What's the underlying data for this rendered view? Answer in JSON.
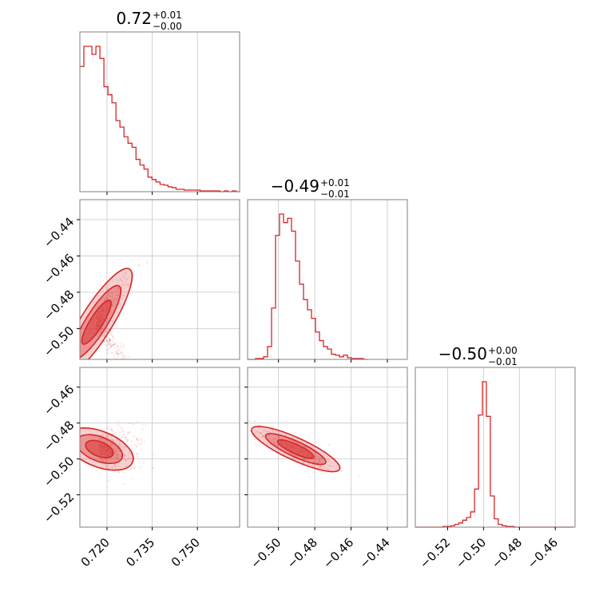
{
  "chart_data": {
    "type": "corner",
    "color": "#d62728",
    "grid": true,
    "parameters": [
      {
        "title_value": "0.72",
        "title_plus": "+0.01",
        "title_minus": "−0.00"
      },
      {
        "title_value": "−0.49",
        "title_plus": "+0.01",
        "title_minus": "−0.01"
      },
      {
        "title_value": "−0.50",
        "title_plus": "+0.00",
        "title_minus": "−0.01"
      }
    ],
    "ranges": [
      [
        0.711,
        0.764
      ],
      [
        -0.517,
        -0.429
      ],
      [
        -0.538,
        -0.449
      ]
    ],
    "ticks": [
      {
        "values": [
          0.72,
          0.735,
          0.75
        ],
        "labels": [
          "0.720",
          "0.735",
          "0.750"
        ]
      },
      {
        "values": [
          -0.5,
          -0.48,
          -0.46,
          -0.44
        ],
        "labels": [
          "−0.50",
          "−0.48",
          "−0.46",
          "−0.44"
        ]
      },
      {
        "values": [
          -0.52,
          -0.5,
          -0.48,
          -0.46
        ],
        "labels": [
          "−0.52",
          "−0.50",
          "−0.48",
          "−0.46"
        ]
      }
    ],
    "histograms": [
      {
        "param": 0,
        "bin_start": 0.711,
        "bin_width": 0.00133,
        "counts": [
          155,
          180,
          180,
          170,
          180,
          165,
          130,
          120,
          110,
          88,
          80,
          68,
          60,
          55,
          40,
          33,
          28,
          18,
          15,
          12,
          9,
          8,
          6,
          5,
          3,
          3,
          2,
          2,
          2,
          2,
          1,
          1,
          1,
          1,
          1,
          0,
          1,
          0,
          1,
          0
        ]
      },
      {
        "param": 1,
        "bin_start": -0.517,
        "bin_width": 0.0022,
        "counts": [
          0,
          0,
          1,
          1,
          3,
          15,
          60,
          145,
          170,
          160,
          165,
          150,
          115,
          88,
          70,
          58,
          48,
          32,
          22,
          15,
          12,
          6,
          5,
          3,
          5,
          2,
          1,
          1,
          1,
          0
        ]
      },
      {
        "param": 2,
        "bin_start": -0.538,
        "bin_width": 0.0022,
        "counts": [
          0,
          0,
          0,
          0,
          0,
          0,
          0,
          1,
          1,
          2,
          4,
          6,
          10,
          14,
          22,
          55,
          162,
          210,
          160,
          45,
          12,
          4,
          2,
          1,
          1,
          0,
          0,
          0,
          0,
          0,
          0,
          0,
          0,
          0,
          0,
          0,
          0,
          0,
          0,
          0
        ]
      }
    ],
    "scatter_2d": [
      {
        "x_param": 0,
        "y_param": 1,
        "center": [
          0.7165,
          -0.4965
        ],
        "corr": 0.95,
        "sd": [
          0.005,
          0.014
        ]
      },
      {
        "x_param": 0,
        "y_param": 2,
        "center": [
          0.7175,
          -0.4945
        ],
        "corr": -0.55,
        "sd": [
          0.005,
          0.006
        ]
      },
      {
        "x_param": 1,
        "y_param": 2,
        "center": [
          -0.4905,
          -0.4945
        ],
        "corr": -0.85,
        "sd": [
          0.011,
          0.006
        ]
      }
    ]
  }
}
